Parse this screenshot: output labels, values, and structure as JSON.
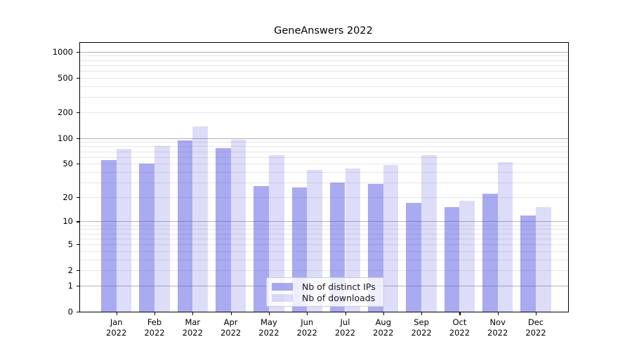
{
  "title": "GeneAnswers 2022",
  "chart_data": {
    "type": "bar",
    "title": "GeneAnswers 2022",
    "categories": [
      "Jan",
      "Feb",
      "Mar",
      "Apr",
      "May",
      "Jun",
      "Jul",
      "Aug",
      "Sep",
      "Oct",
      "Nov",
      "Dec"
    ],
    "x_year_label": "2022",
    "series": [
      {
        "name": "Nb of distinct IPs",
        "values": [
          55,
          50,
          93,
          76,
          27,
          26,
          30,
          29,
          17,
          15,
          22,
          12
        ]
      },
      {
        "name": "Nb of downloads",
        "values": [
          75,
          80,
          137,
          95,
          63,
          42,
          44,
          48,
          63,
          18,
          52,
          15
        ]
      }
    ],
    "xlabel": "",
    "ylabel": "",
    "y_scale": "log1p",
    "ylim": [
      0,
      1268
    ],
    "y_ticks": [
      0,
      1,
      2,
      5,
      10,
      20,
      50,
      100,
      200,
      500,
      1000
    ],
    "y_tick_labels": [
      "0",
      "1",
      "2",
      "5",
      "10",
      "20",
      "50",
      "100",
      "200",
      "500",
      "1000"
    ],
    "gridlines": {
      "major": [
        1,
        10,
        100,
        1000
      ],
      "minor": [
        2,
        3,
        4,
        5,
        6,
        7,
        8,
        9,
        20,
        30,
        40,
        50,
        60,
        70,
        80,
        90,
        200,
        300,
        400,
        500,
        600,
        700,
        800,
        900
      ]
    },
    "legend_position": "lower-center-inside",
    "colors": {
      "bar_ips": "rgba(85,85,226,0.5)",
      "bar_downloads": "rgba(85,85,226,0.2)",
      "bar_ips_hex_on_white": "#aaaaf0",
      "bar_downloads_hex_on_white": "#ddddf9",
      "grid_major": "#b3b3b3",
      "grid_minor": "#e5e5e5",
      "spine": "#000000",
      "legend_border": "#cccccc"
    }
  }
}
